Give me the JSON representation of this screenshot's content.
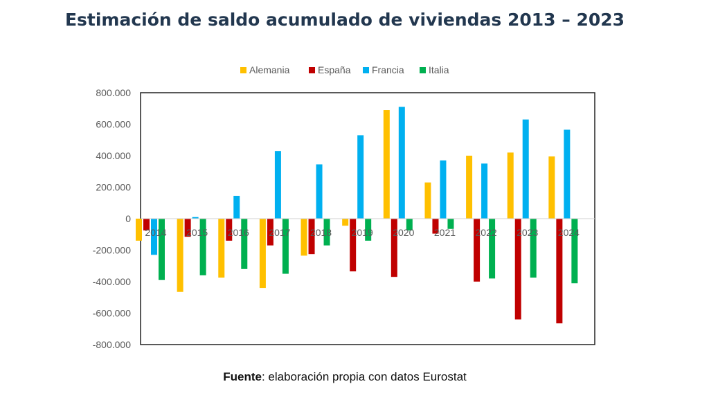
{
  "title": "Estimación de saldo acumulado de viviendas 2013 – 2023",
  "source": {
    "label": "Fuente",
    "text": ": elaboración propia con datos Eurostat"
  },
  "chart_data": {
    "type": "bar",
    "categories": [
      "2014",
      "2015",
      "2016",
      "2017",
      "2018",
      "2019",
      "2020",
      "2021",
      "2022",
      "2023",
      "2024"
    ],
    "series": [
      {
        "name": "Alemania",
        "color": "#ffc000",
        "values": [
          -140000,
          -465000,
          -375000,
          -440000,
          -235000,
          -45000,
          690000,
          230000,
          400000,
          420000,
          395000
        ]
      },
      {
        "name": "España",
        "color": "#c00000",
        "values": [
          -75000,
          -115000,
          -140000,
          -170000,
          -225000,
          -335000,
          -370000,
          -95000,
          -400000,
          -640000,
          -665000
        ]
      },
      {
        "name": "Francia",
        "color": "#00b0f0",
        "values": [
          -230000,
          10000,
          145000,
          430000,
          345000,
          530000,
          710000,
          370000,
          350000,
          630000,
          565000
        ]
      },
      {
        "name": "Italia",
        "color": "#00b050",
        "values": [
          -390000,
          -360000,
          -320000,
          -350000,
          -170000,
          -140000,
          -75000,
          -65000,
          -380000,
          -375000,
          -410000
        ]
      }
    ],
    "ylim": [
      -800000,
      800000
    ],
    "yticks": [
      -800000,
      -600000,
      -400000,
      -200000,
      0,
      200000,
      400000,
      600000,
      800000
    ],
    "ytick_labels": [
      "-800.000",
      "-600.000",
      "-400.000",
      "-200.000",
      "0",
      "200.000",
      "400.000",
      "600.000",
      "800.000"
    ],
    "legend_position": "top-center",
    "grid": false,
    "xlabel": "",
    "ylabel": ""
  }
}
